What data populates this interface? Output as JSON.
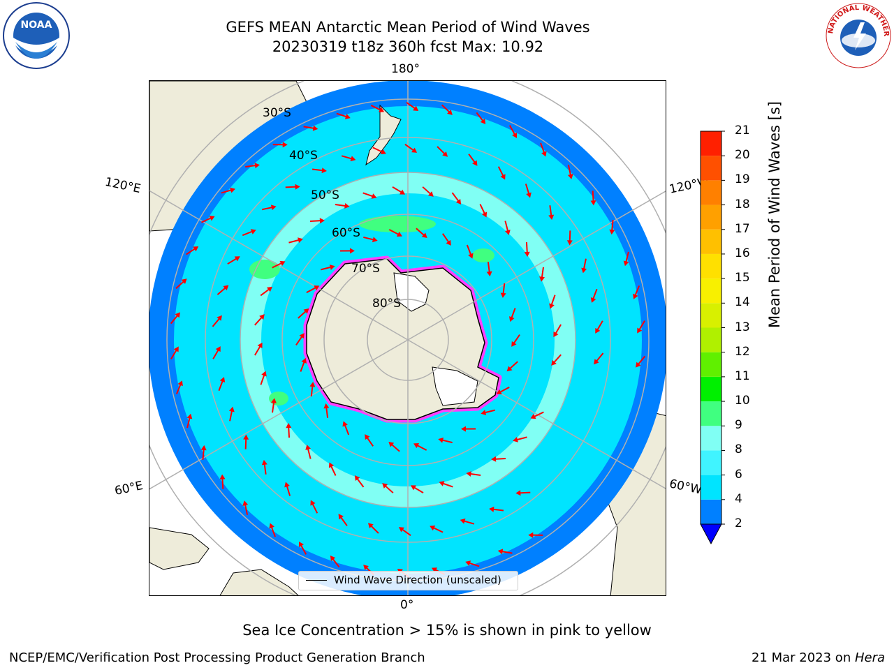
{
  "header": {
    "title_line1": "GEFS MEAN Antarctic Mean Period of Wind Waves",
    "title_line2": "20230319 t18z 360h fcst   Max: 10.92"
  },
  "logos": {
    "left": "NOAA",
    "right_ring_text": "NATIONAL WEATHER SERVICE"
  },
  "chart_data": {
    "type": "heatmap",
    "projection": "south polar stereographic",
    "title": "GEFS MEAN Antarctic Mean Period of Wind Waves",
    "subtitle": "20230319 t18z 360h fcst   Max: 10.92",
    "max_value": 10.92,
    "longitude_labels": [
      "180°",
      "120°E",
      "120°W",
      "60°E",
      "60°W",
      "0°"
    ],
    "latitude_labels": [
      "30°S",
      "40°S",
      "50°S",
      "60°S",
      "70°S",
      "80°S"
    ],
    "grid": true,
    "colorbar": {
      "label": "Mean Period of Wind Waves [s]",
      "ticks": [
        "2",
        "4",
        "6",
        "8",
        "9",
        "10",
        "11",
        "12",
        "13",
        "14",
        "15",
        "16",
        "17",
        "18",
        "19",
        "20",
        "21"
      ],
      "colors": [
        "#0080ff",
        "#00e4ff",
        "#40f4ff",
        "#80fff4",
        "#40ff80",
        "#00f000",
        "#60f000",
        "#b0f000",
        "#d8f000",
        "#f8f000",
        "#ffe000",
        "#ffc000",
        "#ffa000",
        "#ff8000",
        "#ff5000",
        "#ff2000",
        "#ff0000"
      ],
      "extend_below_color": "#0000ff"
    },
    "legend": {
      "entry": "Wind Wave Direction (unscaled)",
      "placement": "bottom-center"
    },
    "annotation": "Sea Ice Concentration > 15% is shown in pink to yellow"
  },
  "footer": {
    "left": "NCEP/EMC/Verification Post Processing Product Generation Branch",
    "right_date": "21 Mar 2023 on ",
    "right_machine": "Hera"
  },
  "colors": {
    "land": "#eeecda",
    "ocean_deep": "#0080ff",
    "ocean_main": "#00e4ff",
    "ocean_light": "#80fff4",
    "ocean_green": "#40ff80",
    "ice_edge": "#ff40ff",
    "arrow": "#ff0000",
    "grid": "#b0b0b0"
  }
}
